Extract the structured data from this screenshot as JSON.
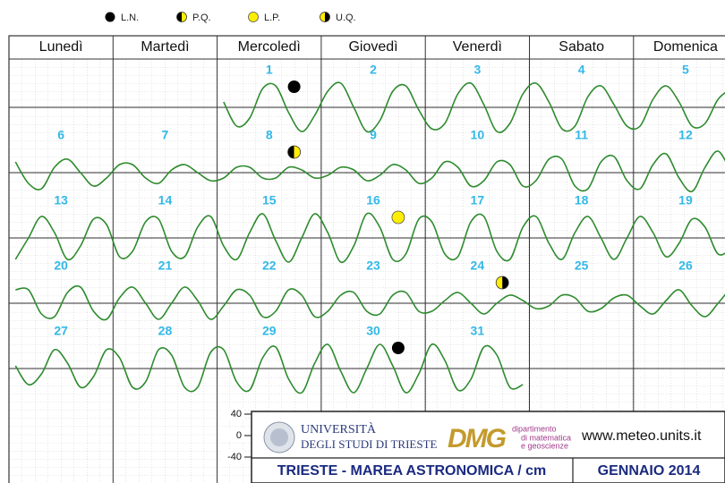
{
  "chart_data": {
    "type": "tide-calendar",
    "legend": [
      {
        "label": "L.N.",
        "kind": "new",
        "days": [
          1,
          30
        ]
      },
      {
        "label": "P.Q.",
        "kind": "first",
        "days": [
          8
        ]
      },
      {
        "label": "L.P.",
        "kind": "full",
        "days": [
          16
        ]
      },
      {
        "label": "U.Q.",
        "kind": "last",
        "days": [
          24
        ]
      }
    ],
    "weekdays": [
      "Lunedì",
      "Martedì",
      "Mercoledì",
      "Giovedì",
      "Venerdì",
      "Sabato",
      "Domenica"
    ],
    "yticks": [
      40,
      0,
      -40
    ],
    "color": "#2e8b2e",
    "weeks": [
      [
        null,
        null,
        {
          "day": 1,
          "values": [
            10,
            -35,
            -20,
            35,
            40,
            -10,
            -45,
            -15
          ]
        },
        {
          "day": 2,
          "values": [
            30,
            45,
            0,
            -45,
            -25,
            30,
            40,
            -5
          ]
        },
        {
          "day": 3,
          "values": [
            -40,
            -30,
            25,
            45,
            5,
            -45,
            -30,
            25
          ]
        },
        {
          "day": 4,
          "values": [
            45,
            10,
            -40,
            -35,
            20,
            40,
            5,
            -35
          ]
        },
        {
          "day": 5,
          "values": [
            -35,
            15,
            40,
            10,
            -35,
            -30,
            15,
            35
          ]
        }
      ],
      [
        {
          "day": 6,
          "values": [
            20,
            -20,
            -30,
            10,
            25,
            0,
            -25,
            -10
          ]
        },
        {
          "day": 7,
          "values": [
            15,
            15,
            -10,
            -20,
            5,
            15,
            0,
            -15
          ]
        },
        {
          "day": 8,
          "values": [
            -10,
            10,
            10,
            -10,
            -10,
            10,
            5,
            -10
          ]
        },
        {
          "day": 9,
          "values": [
            -5,
            10,
            5,
            -15,
            -5,
            15,
            5,
            -20
          ]
        },
        {
          "day": 10,
          "values": [
            -10,
            20,
            10,
            -25,
            -15,
            20,
            15,
            -25
          ]
        },
        {
          "day": 11,
          "values": [
            -15,
            25,
            25,
            -25,
            -30,
            20,
            30,
            -15
          ]
        },
        {
          "day": 12,
          "values": [
            -30,
            15,
            35,
            -10,
            -35,
            10,
            40,
            0
          ]
        }
      ],
      [
        {
          "day": 13,
          "values": [
            -40,
            0,
            40,
            10,
            -40,
            -15,
            35,
            25
          ]
        },
        {
          "day": 14,
          "values": [
            -35,
            -25,
            30,
            35,
            -25,
            -35,
            20,
            40
          ]
        },
        {
          "day": 15,
          "values": [
            -15,
            -40,
            10,
            45,
            -5,
            -45,
            0,
            45
          ]
        },
        {
          "day": 16,
          "values": [
            10,
            -45,
            -15,
            45,
            20,
            -40,
            -30,
            35
          ]
        },
        {
          "day": 17,
          "values": [
            30,
            -30,
            -35,
            30,
            40,
            -25,
            -40,
            20
          ]
        },
        {
          "day": 18,
          "values": [
            40,
            -10,
            -40,
            10,
            40,
            0,
            -40,
            0
          ]
        },
        {
          "day": 19,
          "values": [
            40,
            10,
            -35,
            -10,
            35,
            20,
            -30,
            -20
          ]
        }
      ],
      [
        {
          "day": 20,
          "values": [
            25,
            25,
            -20,
            -25,
            20,
            30,
            -15,
            -30
          ]
        },
        {
          "day": 21,
          "values": [
            10,
            30,
            0,
            -30,
            0,
            30,
            5,
            -30
          ]
        },
        {
          "day": 22,
          "values": [
            -5,
            25,
            15,
            -25,
            -15,
            25,
            15,
            -25
          ]
        },
        {
          "day": 23,
          "values": [
            -15,
            15,
            20,
            -15,
            -20,
            15,
            20,
            -15
          ]
        },
        {
          "day": 24,
          "values": [
            -15,
            5,
            20,
            0,
            -20,
            0,
            15,
            5
          ]
        },
        {
          "day": 25,
          "values": [
            -10,
            -5,
            15,
            10,
            -15,
            -10,
            10,
            15
          ]
        },
        {
          "day": 26,
          "values": [
            -5,
            -20,
            5,
            25,
            -5,
            -25,
            0,
            30
          ]
        }
      ],
      [
        {
          "day": 27,
          "values": [
            5,
            -30,
            -10,
            35,
            10,
            -35,
            -15,
            35
          ]
        },
        {
          "day": 28,
          "values": [
            20,
            -35,
            -25,
            35,
            25,
            -35,
            -35,
            30
          ]
        },
        {
          "day": 29,
          "values": [
            35,
            -25,
            -40,
            20,
            40,
            -20,
            -45,
            10
          ]
        },
        {
          "day": 30,
          "values": [
            45,
            -5,
            -45,
            0,
            45,
            5,
            -45,
            -10
          ]
        },
        {
          "day": 31,
          "values": [
            45,
            15,
            -40,
            -20,
            40,
            25,
            -35,
            -30
          ]
        },
        null,
        null
      ]
    ],
    "footer": {
      "university_1": "UNIVERSITÀ",
      "university_2": "DEGLI STUDI DI TRIESTE",
      "dept_logo": "DMG",
      "dept_1": "dipartimento",
      "dept_2": "di matematica",
      "dept_3": "e geoscienze",
      "website": "www.meteo.units.it",
      "title": "TRIESTE - MAREA ASTRONOMICA / cm",
      "month": "GENNAIO 2014"
    }
  }
}
